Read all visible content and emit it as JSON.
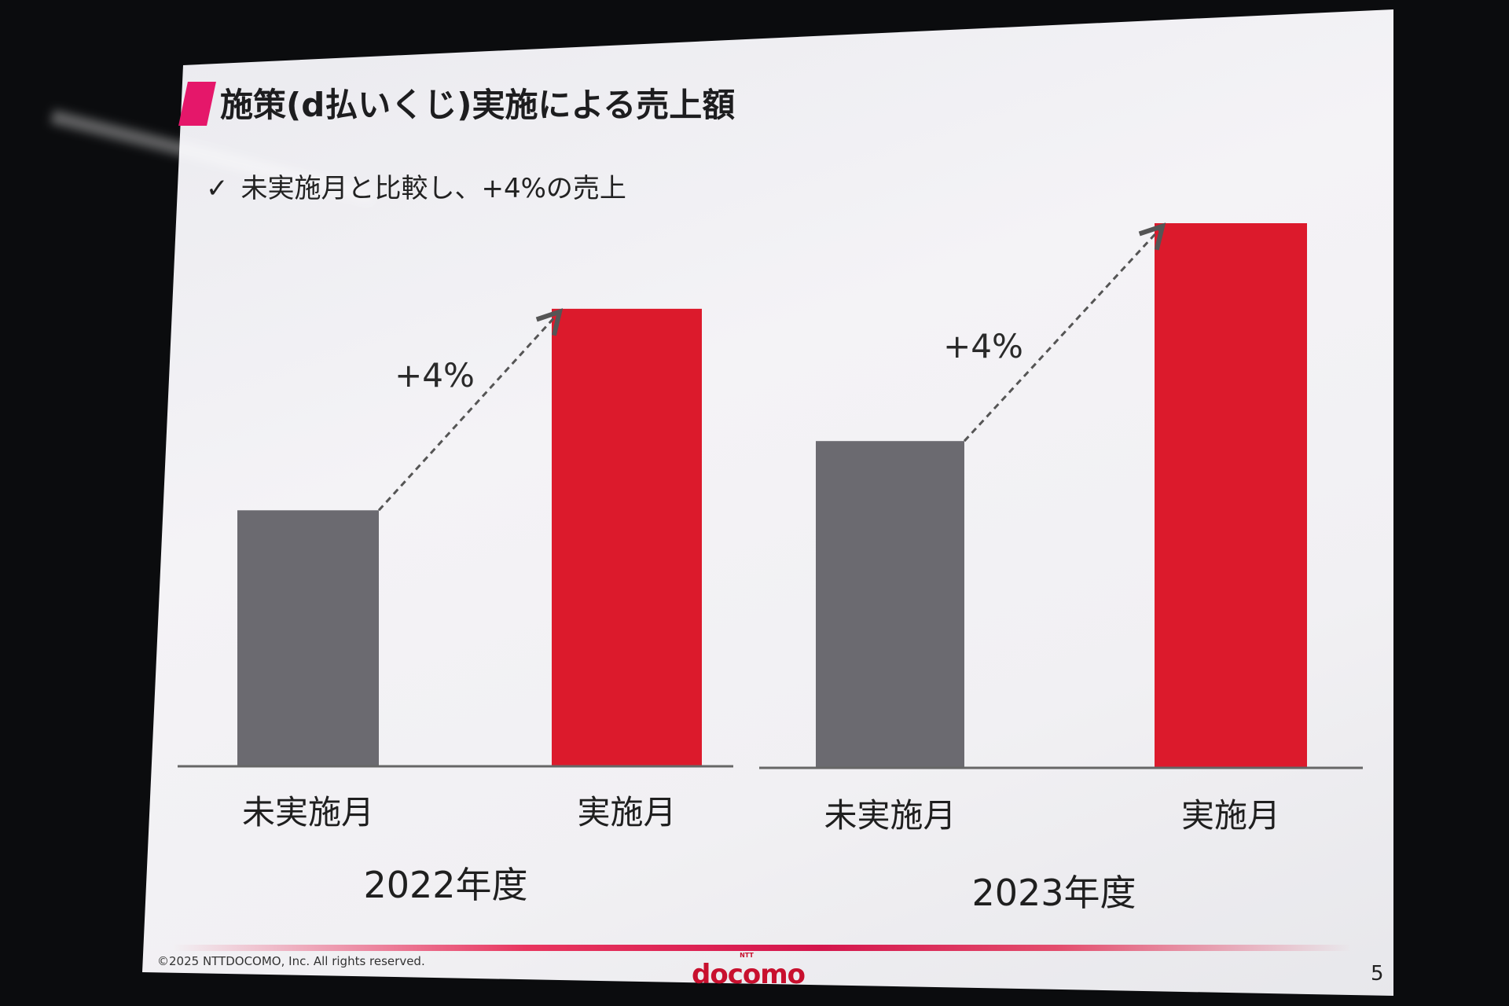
{
  "slide": {
    "title": "施策(d払いくじ)実施による売上額",
    "bullet_icon": "check-icon",
    "bullet_check": "✓",
    "bullet": "未実施月と比較し、+4%の売上",
    "copyright": "©2025 NTTDOCOMO, Inc. All rights reserved.",
    "logo_small": "NTT",
    "logo": "docomo",
    "page_number": "5"
  },
  "colors": {
    "not_implemented": "#6b6a70",
    "implemented": "#dc1a2c",
    "accent": "#e5176a"
  },
  "chart_data": {
    "type": "bar",
    "title": "施策(d払いくじ)実施による売上額",
    "y_axis_visible": false,
    "note": "values are relative bar heights (tallest = 100); no axis shown",
    "ylim": [
      0,
      100
    ],
    "groups": [
      {
        "year": "2022年度",
        "categories": [
          "未実施月",
          "実施月"
        ],
        "values": [
          47,
          84
        ],
        "annotation": "+4%"
      },
      {
        "year": "2023年度",
        "categories": [
          "未実施月",
          "実施月"
        ],
        "values": [
          60,
          100
        ],
        "annotation": "+4%"
      }
    ]
  }
}
